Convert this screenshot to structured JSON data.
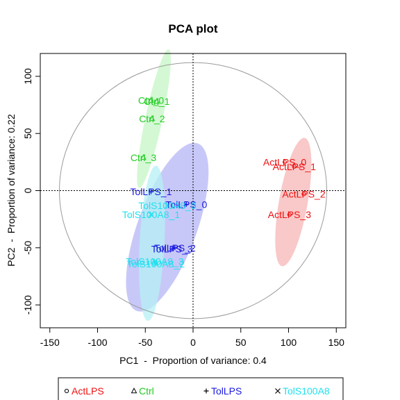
{
  "chart_data": {
    "type": "scatter",
    "title": "PCA plot",
    "xlabel": "PC1  -  Proportion of variance: 0.4",
    "ylabel": "PC2  -  Proportion of variance: 0.22",
    "xlim": [
      -160,
      160
    ],
    "ylim": [
      -120,
      120
    ],
    "xticks": [
      -150,
      -100,
      -50,
      0,
      50,
      100,
      150
    ],
    "yticks": [
      -100,
      -50,
      0,
      50,
      100
    ],
    "grid": false,
    "reference_lines": {
      "x": 0,
      "y": 0,
      "style": "dotted"
    },
    "legend_position": "bottom",
    "series": [
      {
        "name": "ActLPS",
        "marker": "circle",
        "color": "#ee1111",
        "fill": "#f7b5b5",
        "ellipse": {
          "cx": 105,
          "cy": -10,
          "rx": 15,
          "ry": 57,
          "angle": 10
        },
        "points": [
          {
            "label": "ActLPS_0",
            "x": 96,
            "y": 25
          },
          {
            "label": "ActLPS_1",
            "x": 106,
            "y": 21
          },
          {
            "label": "ActLPS_2",
            "x": 116,
            "y": -3
          },
          {
            "label": "ActLPS_3",
            "x": 101,
            "y": -21
          }
        ]
      },
      {
        "name": "Ctrl",
        "marker": "triangle",
        "color": "#22cc22",
        "fill": "#c6f5c6",
        "ellipse": {
          "cx": -41,
          "cy": 63,
          "rx": 9,
          "ry": 62,
          "angle": 12
        },
        "points": [
          {
            "label": "Ctrl_0",
            "x": -44,
            "y": 79
          },
          {
            "label": "Ctrl_1",
            "x": -38,
            "y": 78
          },
          {
            "label": "Ctrl_2",
            "x": -43,
            "y": 63
          },
          {
            "label": "Ctrl_3",
            "x": -52,
            "y": 29
          }
        ]
      },
      {
        "name": "TolLPS",
        "marker": "plus",
        "color": "#1818dd",
        "fill": "#b5b5f5",
        "ellipse": {
          "cx": -27,
          "cy": -32,
          "rx": 31,
          "ry": 78,
          "angle": 20
        },
        "points": [
          {
            "label": "TolLPS_1",
            "x": -44,
            "y": -1
          },
          {
            "label": "TolLPS_0",
            "x": -7,
            "y": -12
          },
          {
            "label": "TolLPS_2",
            "x": -19,
            "y": -50
          },
          {
            "label": "TolLPS_3",
            "x": -22,
            "y": -51
          }
        ]
      },
      {
        "name": "TolS100A8",
        "marker": "cross",
        "color": "#1ee0ee",
        "fill": "#b5f0f5",
        "ellipse": {
          "cx": -43,
          "cy": -46,
          "rx": 13,
          "ry": 68,
          "angle": 3
        },
        "points": [
          {
            "label": "TolS100A8_0",
            "x": -27,
            "y": -13
          },
          {
            "label": "TolS100A8_1",
            "x": -44,
            "y": -21
          },
          {
            "label": "TolS100A8_2",
            "x": -39,
            "y": -64
          },
          {
            "label": "TolS100A8_3",
            "x": -40,
            "y": -62
          }
        ]
      }
    ]
  }
}
